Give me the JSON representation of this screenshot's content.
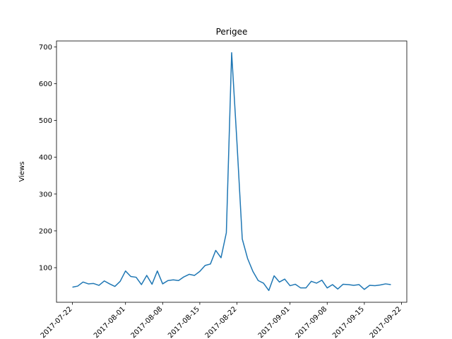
{
  "chart_data": {
    "type": "line",
    "title": "Perigee",
    "ylabel": "Views",
    "color": "#1f77b4",
    "x": [
      "2017-07-22",
      "2017-07-23",
      "2017-07-24",
      "2017-07-25",
      "2017-07-26",
      "2017-07-27",
      "2017-07-28",
      "2017-07-29",
      "2017-07-30",
      "2017-07-31",
      "2017-08-01",
      "2017-08-02",
      "2017-08-03",
      "2017-08-04",
      "2017-08-05",
      "2017-08-06",
      "2017-08-07",
      "2017-08-08",
      "2017-08-09",
      "2017-08-10",
      "2017-08-11",
      "2017-08-12",
      "2017-08-13",
      "2017-08-14",
      "2017-08-15",
      "2017-08-16",
      "2017-08-17",
      "2017-08-18",
      "2017-08-19",
      "2017-08-20",
      "2017-08-21",
      "2017-08-22",
      "2017-08-23",
      "2017-08-24",
      "2017-08-25",
      "2017-08-26",
      "2017-08-27",
      "2017-08-28",
      "2017-08-29",
      "2017-08-30",
      "2017-08-31",
      "2017-09-01",
      "2017-09-02",
      "2017-09-03",
      "2017-09-04",
      "2017-09-05",
      "2017-09-06",
      "2017-09-07",
      "2017-09-08",
      "2017-09-09",
      "2017-09-10",
      "2017-09-11",
      "2017-09-12",
      "2017-09-13",
      "2017-09-14",
      "2017-09-15",
      "2017-09-16",
      "2017-09-17",
      "2017-09-18",
      "2017-09-19",
      "2017-09-20"
    ],
    "values": [
      47,
      50,
      61,
      56,
      57,
      52,
      64,
      56,
      49,
      63,
      91,
      76,
      74,
      54,
      79,
      55,
      91,
      56,
      65,
      67,
      65,
      75,
      82,
      79,
      90,
      106,
      110,
      147,
      127,
      195,
      684,
      440,
      178,
      125,
      90,
      65,
      58,
      38,
      78,
      61,
      69,
      51,
      55,
      45,
      45,
      63,
      58,
      66,
      45,
      54,
      42,
      55,
      54,
      52,
      54,
      41,
      52,
      51,
      53,
      56,
      54
    ],
    "xlim": [
      "2017-07-19",
      "2017-09-23"
    ],
    "xticks": [
      "2017-07-22",
      "2017-08-01",
      "2017-08-08",
      "2017-08-15",
      "2017-08-22",
      "2017-09-01",
      "2017-09-08",
      "2017-09-15",
      "2017-09-22"
    ],
    "ylim": [
      6,
      716
    ],
    "yticks": [
      100,
      200,
      300,
      400,
      500,
      600,
      700
    ]
  }
}
